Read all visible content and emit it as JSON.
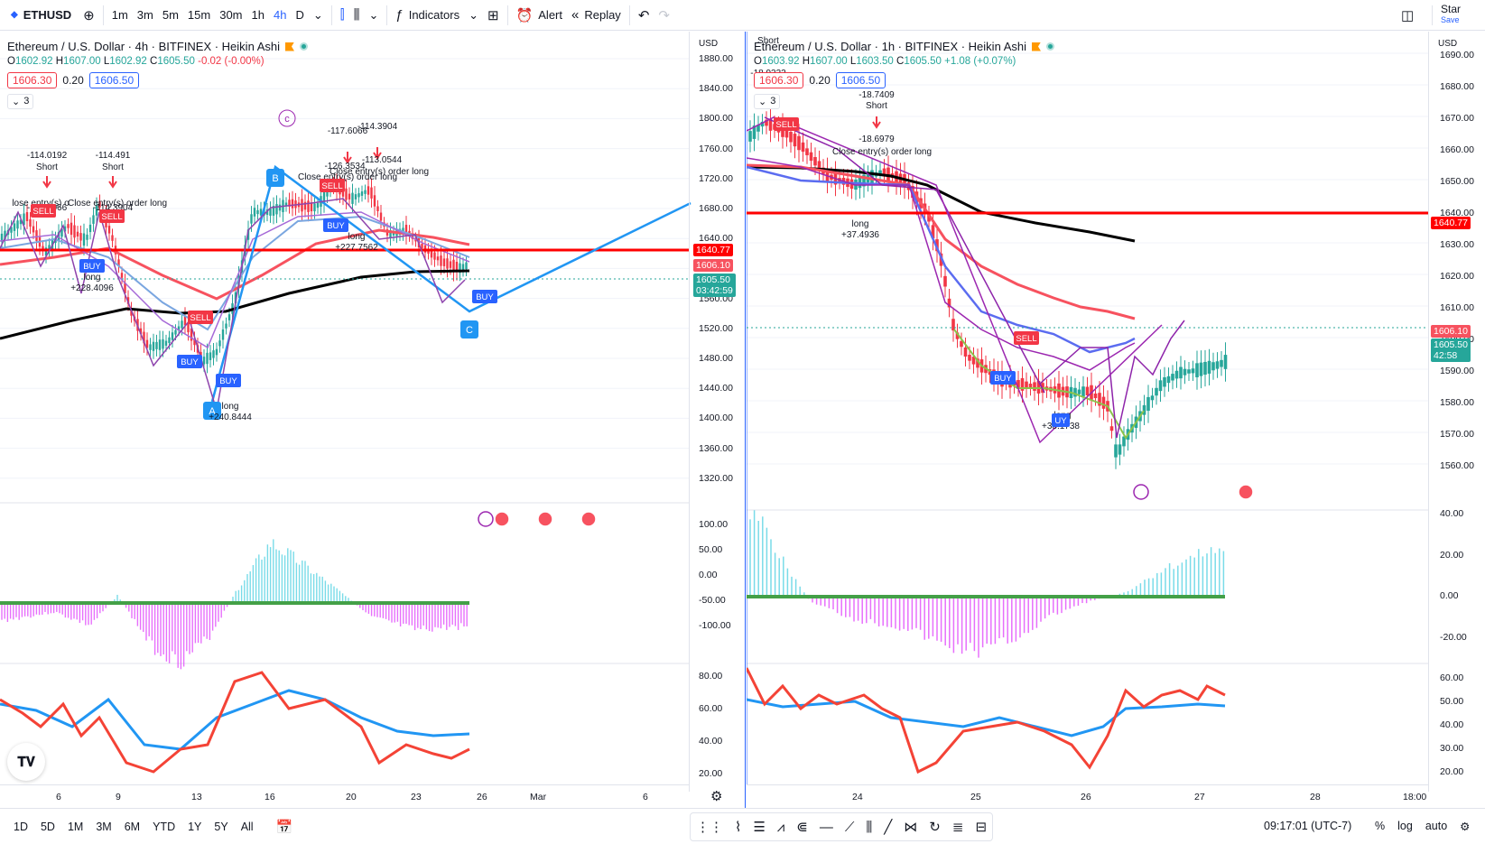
{
  "toolbar": {
    "symbol": "ETHUSD",
    "intervals": [
      "1m",
      "3m",
      "5m",
      "15m",
      "30m",
      "1h",
      "4h",
      "D"
    ],
    "active_interval": "4h",
    "indicators_label": "Indicators",
    "alert_label": "Alert",
    "replay_label": "Replay",
    "start_label": "Star",
    "save_label": "Save"
  },
  "colors": {
    "up": "#26a69a",
    "down": "#f23645",
    "accent": "#2962ff",
    "resistance": "#ff0000",
    "ema_long": "#000000",
    "ema_mid": "#f7525f",
    "ema_fast": "#5b6cf0"
  },
  "left_chart": {
    "title": "Ethereum / U.S. Dollar · 4h · BITFINEX · Heikin Ashi",
    "ohlc": {
      "o": "1602.92",
      "h": "1607.00",
      "l": "1602.92",
      "c": "1605.50",
      "chg": "-0.02 (-0.00%)"
    },
    "sell_price": "1606.30",
    "spread": "0.20",
    "buy_price": "1606.50",
    "indicator_count": "3",
    "currency": "USD",
    "price_ticks": [
      "1880.00",
      "1840.00",
      "1800.00",
      "1760.00",
      "1720.00",
      "1680.00",
      "1640.00",
      "1600.00",
      "1560.00",
      "1520.00",
      "1480.00",
      "1440.00",
      "1400.00",
      "1360.00",
      "1320.00"
    ],
    "osc_ticks": [
      "100.00",
      "50.00",
      "0.00",
      "-50.00",
      "-100.00"
    ],
    "rsi_ticks": [
      "80.00",
      "60.00",
      "40.00",
      "20.00"
    ],
    "time_ticks": [
      "6",
      "9",
      "13",
      "16",
      "20",
      "23",
      "26",
      "Mar",
      "6"
    ],
    "tag_resistance": "1640.77",
    "tag_bid": "1606.10",
    "tag_last": "1605.50",
    "tag_countdown": "03:42:59",
    "trades": [
      {
        "value": "-114.0192",
        "side": "Short"
      },
      {
        "value": "-114.491",
        "side": "Short"
      },
      {
        "value": "-117.6066",
        "side": ""
      },
      {
        "value": "-114.3904",
        "side": ""
      },
      {
        "value": "-114.7018",
        "side": "Short"
      },
      {
        "value": "-114.1496",
        "side": "Short"
      },
      {
        "value": "-126.3534",
        "side": ""
      },
      {
        "value": "-113.0544",
        "side": ""
      },
      {
        "value": "+228.4096",
        "side": "long"
      },
      {
        "value": "+227.7562",
        "side": "long"
      },
      {
        "value": "+240.8444",
        "side": "long"
      }
    ],
    "close_text": "Close entry(s) order long",
    "close_text_cut": "lose entry(s) o",
    "wave_labels": [
      "A",
      "B",
      "C",
      "c"
    ],
    "sell_label": "SELL",
    "buy_label": "BUY"
  },
  "right_chart": {
    "title": "Ethereum / U.S. Dollar · 1h · BITFINEX · Heikin Ashi",
    "ohlc": {
      "o": "1603.92",
      "h": "1607.00",
      "l": "1603.50",
      "c": "1605.50",
      "chg": "+1.08 (+0.07%)"
    },
    "sell_price": "1606.30",
    "spread": "0.20",
    "buy_price": "1606.50",
    "indicator_count": "3",
    "currency": "USD",
    "price_ticks": [
      "1690.00",
      "1680.00",
      "1670.00",
      "1660.00",
      "1650.00",
      "1640.00",
      "1630.00",
      "1620.00",
      "1610.00",
      "1600.00",
      "1590.00",
      "1580.00",
      "1570.00",
      "1560.00"
    ],
    "osc_ticks": [
      "40.00",
      "20.00",
      "0.00",
      "-20.00"
    ],
    "rsi_ticks": [
      "60.00",
      "50.00",
      "40.00",
      "30.00",
      "20.00"
    ],
    "time_ticks": [
      "24",
      "25",
      "26",
      "27",
      "28",
      "18:00"
    ],
    "tag_resistance": "1640.77",
    "tag_bid": "1606.10",
    "tag_last": "1605.50",
    "tag_countdown": "42:58",
    "trades": [
      {
        "value": "-18.7409",
        "side": "Short"
      },
      {
        "value": "-18.6979",
        "side": ""
      },
      {
        "value": "+37.4936",
        "side": "long"
      },
      {
        "value": "+38.1738",
        "side": "long"
      },
      {
        "value": "-18.9332",
        "side": "Short"
      }
    ],
    "close_text": "Close entry(s) order long",
    "sell_label": "SELL",
    "buy_label": "BUY",
    "buy_label_cut": "UY"
  },
  "bottom": {
    "ranges": [
      "1D",
      "5D",
      "1M",
      "3M",
      "6M",
      "YTD",
      "1Y",
      "5Y",
      "All"
    ],
    "clock": "09:17:01 (UTC-7)",
    "pct_label": "%",
    "log_label": "log",
    "auto_label": "auto"
  }
}
